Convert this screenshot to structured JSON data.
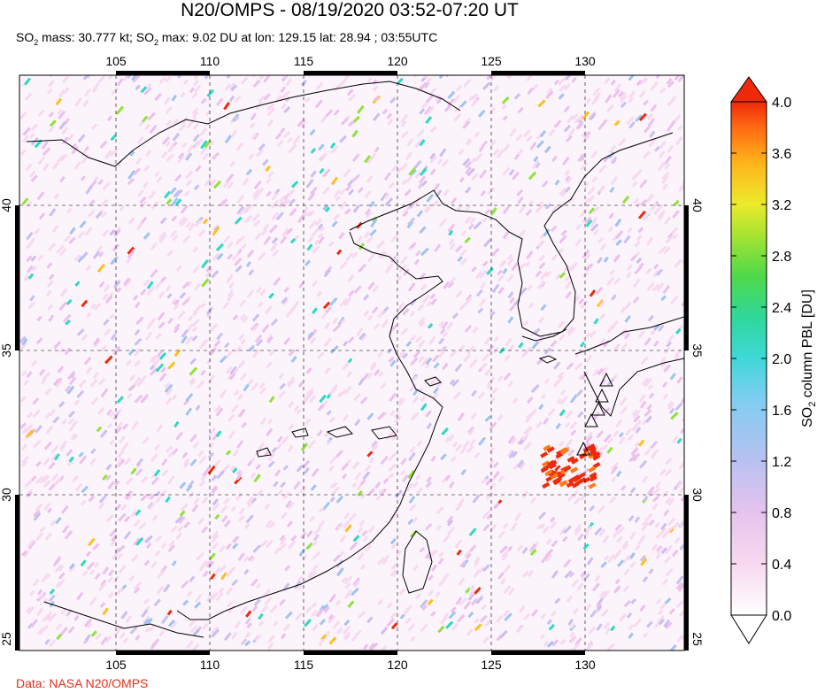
{
  "header": {
    "title": "N20/OMPS - 08/19/2020 03:52-07:20 UT",
    "mass_label": "mass: 30.777 kt;",
    "max_label": "max: 9.02 DU at lon: 129.15 lat: 28.94 ; 03:55UTC",
    "so2_text": "SO",
    "so2_sub": "2"
  },
  "map": {
    "lon_ticks": [
      "105",
      "110",
      "115",
      "120",
      "125",
      "130"
    ],
    "lat_ticks": [
      "40",
      "35",
      "30",
      "25"
    ],
    "volcano_icon": "triangle-icon"
  },
  "colorbar": {
    "title": "SO2 column PBL [DU]",
    "title_main": "SO",
    "title_sub": "2",
    "title_rest": " column PBL [DU]",
    "ticks": [
      "4.0",
      "3.6",
      "3.2",
      "2.8",
      "2.4",
      "2.0",
      "1.6",
      "1.2",
      "0.8",
      "0.4",
      "0.0"
    ],
    "colors": [
      "#ffffff",
      "#f7d9f0",
      "#ecc0ec",
      "#c9bff0",
      "#9fc3f2",
      "#66d3ee",
      "#2fd8c1",
      "#3fd86a",
      "#8fe23a",
      "#e8e82b",
      "#ffbe1e",
      "#ff7a14",
      "#ee2a0b"
    ]
  },
  "footer": {
    "credit": "Data: NASA N20/OMPS"
  }
}
